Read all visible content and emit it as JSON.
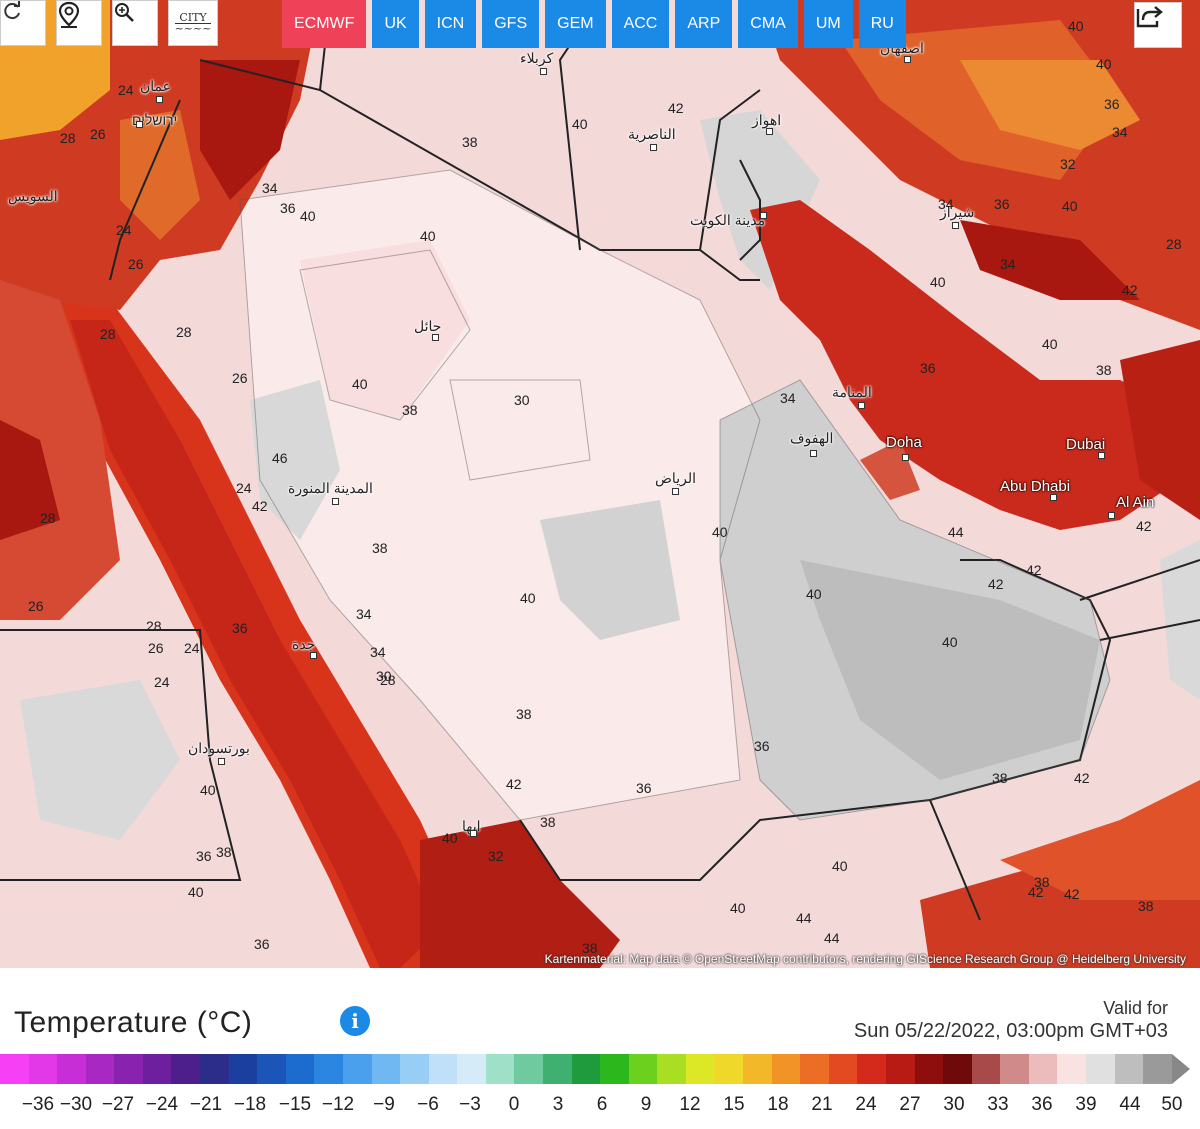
{
  "toolbar": {
    "icons": [
      "refresh-icon",
      "location-pin-icon",
      "zoom-icon",
      "city-icon"
    ],
    "city_label_line1": "CITY",
    "city_label_line2": "~~~~"
  },
  "models": [
    {
      "label": "ECMWF",
      "active": true
    },
    {
      "label": "UK",
      "active": false
    },
    {
      "label": "ICN",
      "active": false
    },
    {
      "label": "GFS",
      "active": false
    },
    {
      "label": "GEM",
      "active": false
    },
    {
      "label": "ACC",
      "active": false
    },
    {
      "label": "ARP",
      "active": false
    },
    {
      "label": "CMA",
      "active": false
    },
    {
      "label": "UM",
      "active": false
    },
    {
      "label": "RU",
      "active": false
    }
  ],
  "share_icon": "share-icon",
  "cities": [
    {
      "name": "عمان"
    },
    {
      "name": "ירושלים"
    },
    {
      "name": "السويس"
    },
    {
      "name": "كربلاء"
    },
    {
      "name": "الناصرية"
    },
    {
      "name": "اهواز"
    },
    {
      "name": "اصفهان"
    },
    {
      "name": "مدينة الكويت"
    },
    {
      "name": "شيراز"
    },
    {
      "name": "حائل"
    },
    {
      "name": "المدينة المنورة"
    },
    {
      "name": "الرياض"
    },
    {
      "name": "المنامة"
    },
    {
      "name": "الهفوف"
    },
    {
      "name": "Doha"
    },
    {
      "name": "Dubai"
    },
    {
      "name": "Abu Dhabi"
    },
    {
      "name": "Al Ain"
    },
    {
      "name": "جدة"
    },
    {
      "name": "بورتسودان"
    },
    {
      "name": "ابها"
    }
  ],
  "contour_labels": [
    "38",
    "40",
    "42",
    "40",
    "40",
    "36",
    "34",
    "28",
    "26",
    "24",
    "28",
    "26",
    "24",
    "28",
    "26",
    "24",
    "28",
    "26",
    "28",
    "26",
    "24",
    "24",
    "36",
    "34",
    "38",
    "38",
    "30",
    "40",
    "38",
    "36",
    "30",
    "28",
    "34",
    "40",
    "40",
    "40",
    "36",
    "38",
    "42",
    "40",
    "40",
    "44",
    "44",
    "42",
    "42",
    "44",
    "42",
    "40",
    "42",
    "40",
    "38",
    "40",
    "40",
    "36",
    "34",
    "32",
    "34",
    "36",
    "28",
    "36",
    "38",
    "40",
    "36",
    "38",
    "40",
    "42",
    "38",
    "40",
    "32",
    "34",
    "38",
    "42",
    "42",
    "38",
    "40",
    "36",
    "34",
    "46",
    "42",
    "40"
  ],
  "attribution": "Kartenmaterial: Map data © OpenStreetMap contributors, rendering GIScience Research Group @ Heidelberg University",
  "legend": {
    "title": "Temperature (°C)",
    "info_icon": "info-icon",
    "valid_label": "Valid for",
    "valid_date": "Sun 05/22/2022, 03:00pm GMT+03",
    "ticks": [
      "−36",
      "−30",
      "−27",
      "−24",
      "−21",
      "−18",
      "−15",
      "−12",
      "−9",
      "−6",
      "−3",
      "0",
      "3",
      "6",
      "9",
      "12",
      "15",
      "18",
      "21",
      "24",
      "27",
      "30",
      "33",
      "36",
      "39",
      "44",
      "50"
    ],
    "colors": [
      "#f540f5",
      "#e238e8",
      "#c72ed6",
      "#a828c4",
      "#8a22b0",
      "#6d1f9e",
      "#4c1f8c",
      "#2c2c8a",
      "#1a3f9e",
      "#1b55b8",
      "#1c6ccf",
      "#2a86e0",
      "#4aa0ec",
      "#70b8f2",
      "#98cdf6",
      "#bfe0f8",
      "#d6ebf8",
      "#9fe0c8",
      "#6fcaa0",
      "#3fb070",
      "#1f9a3c",
      "#2cb81c",
      "#6cd01e",
      "#a8df22",
      "#dce826",
      "#f0d82a",
      "#f2b82a",
      "#f09428",
      "#ec6e26",
      "#e44a22",
      "#d42a1c",
      "#b81a14",
      "#8e0e0e",
      "#6e0a0a",
      "#a84a4a",
      "#d08a8a",
      "#ecbcbc",
      "#f8e2e2",
      "#e0e0e0",
      "#bebebe",
      "#9a9a9a"
    ]
  }
}
